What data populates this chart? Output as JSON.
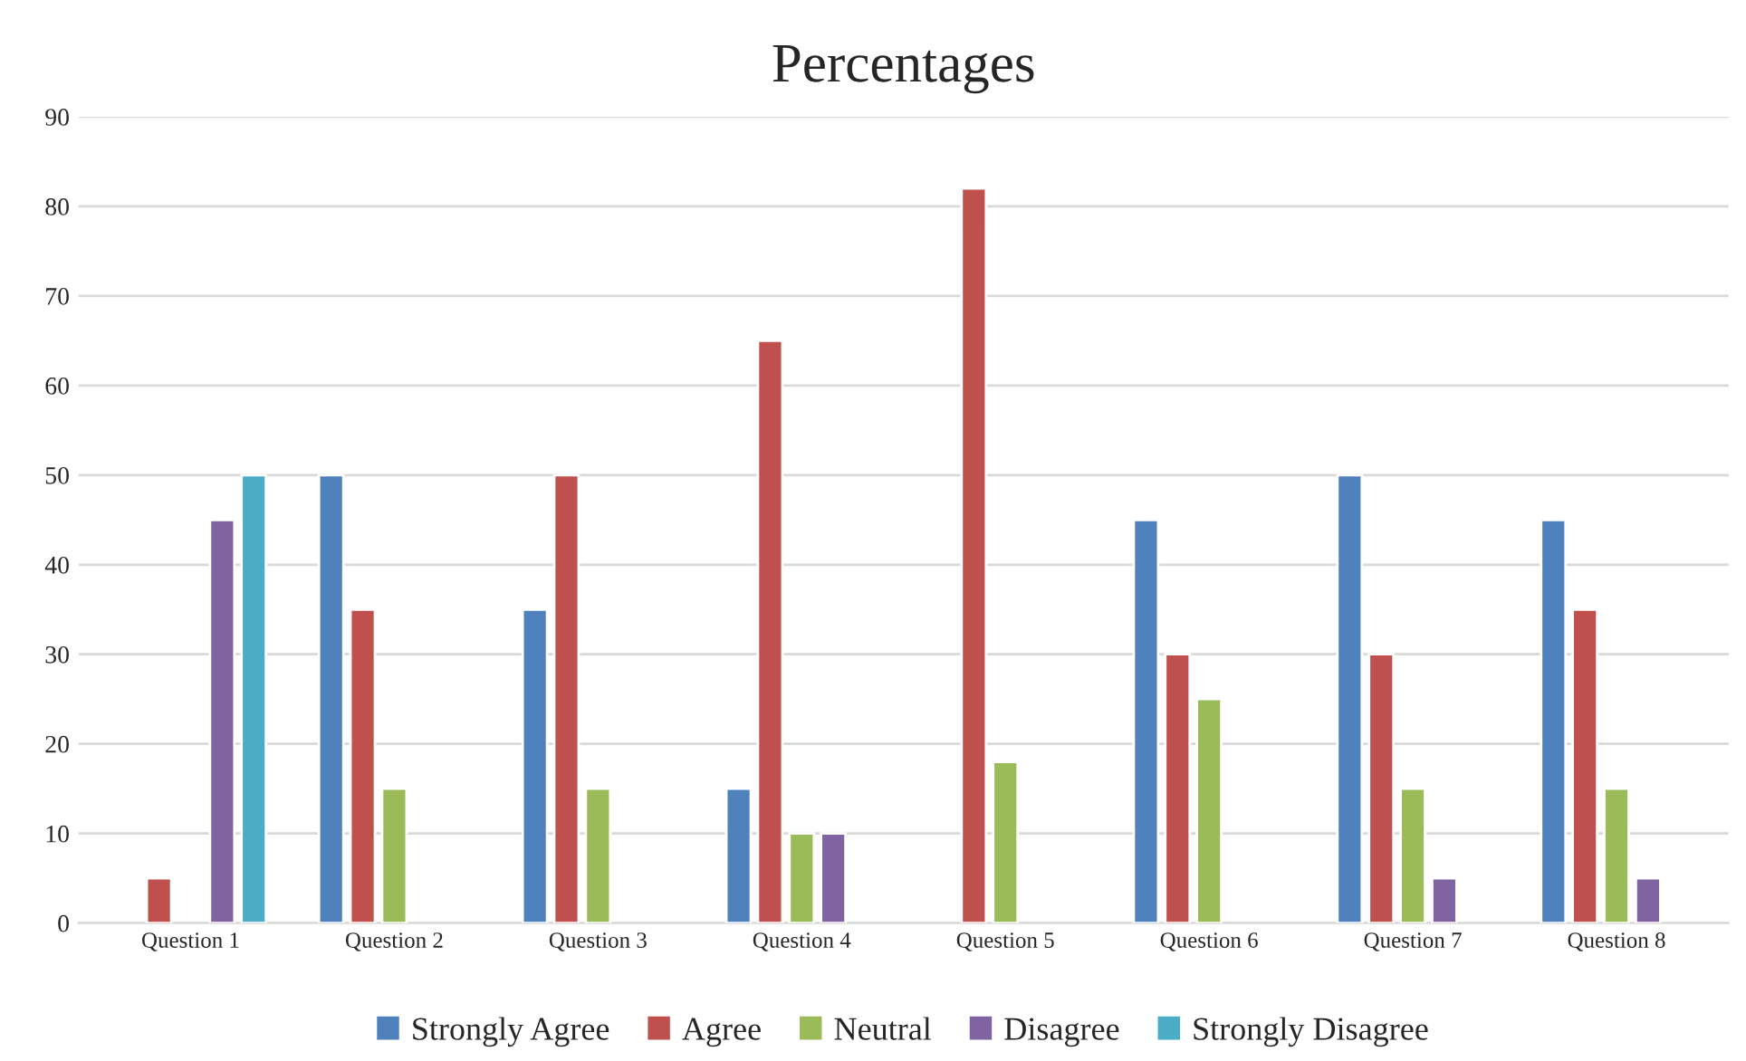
{
  "chart_data": {
    "type": "bar",
    "title": "Percentages",
    "categories": [
      "Question 1",
      "Question 2",
      "Question 3",
      "Question 4",
      "Question 5",
      "Question 6",
      "Question 7",
      "Question 8"
    ],
    "series": [
      {
        "name": "Strongly Agree",
        "color": "#4f81bd",
        "values": [
          null,
          50,
          35,
          15,
          null,
          45,
          50,
          45
        ]
      },
      {
        "name": "Agree",
        "color": "#c0504d",
        "values": [
          5,
          35,
          50,
          65,
          82,
          30,
          30,
          35
        ]
      },
      {
        "name": "Neutral",
        "color": "#9bbb59",
        "values": [
          null,
          15,
          15,
          10,
          18,
          25,
          15,
          15
        ]
      },
      {
        "name": "Disagree",
        "color": "#8064a2",
        "values": [
          45,
          null,
          null,
          10,
          null,
          null,
          5,
          5
        ]
      },
      {
        "name": "Strongly Disagree",
        "color": "#4bacc6",
        "values": [
          50,
          null,
          null,
          null,
          null,
          null,
          null,
          null
        ]
      }
    ],
    "ylim": [
      0,
      90
    ],
    "yticks": [
      0,
      10,
      20,
      30,
      40,
      50,
      60,
      70,
      80,
      90
    ],
    "grid": "y",
    "legend": "bottom"
  }
}
